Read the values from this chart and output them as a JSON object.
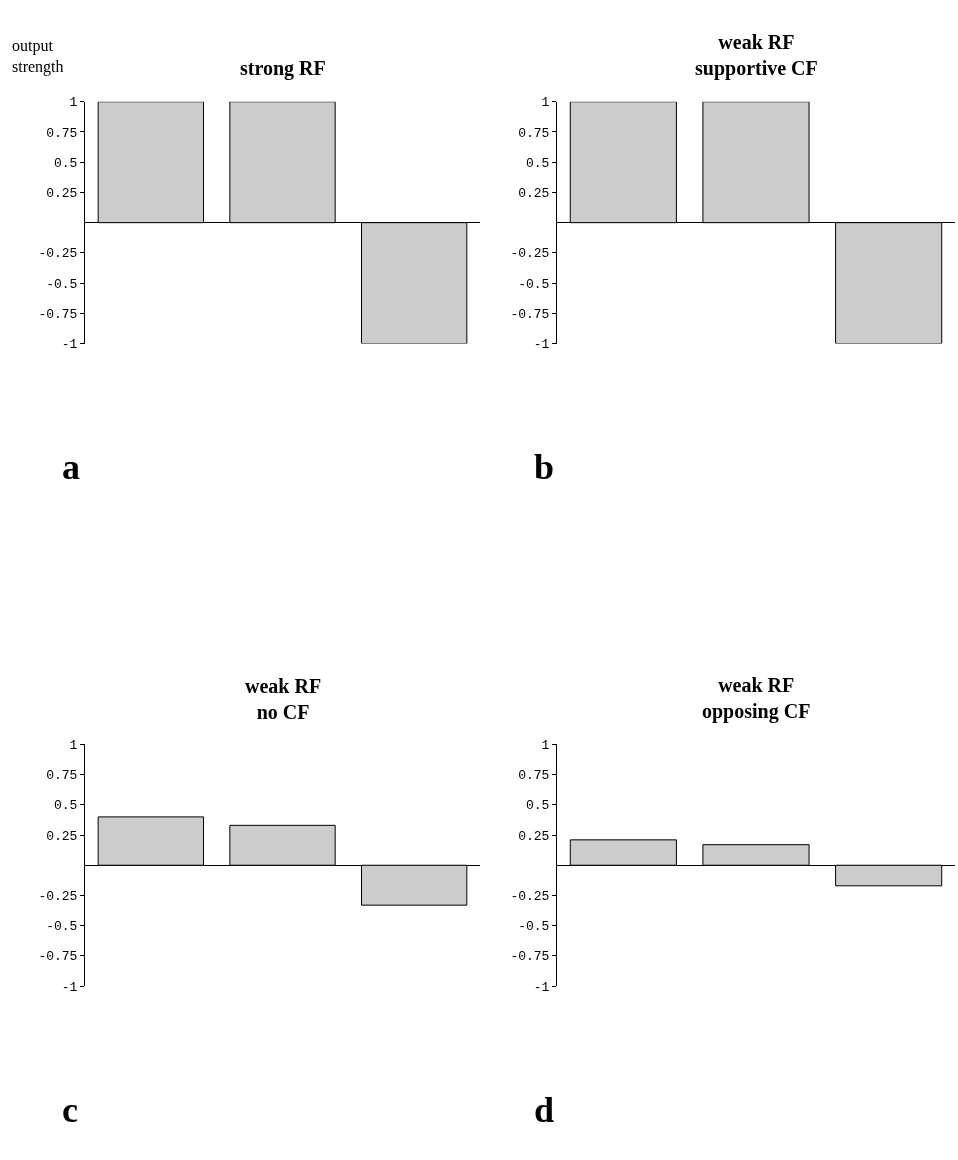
{
  "chart_data": [
    {
      "type": "bar",
      "title": "strong RF",
      "ylabel": "output\nstrength",
      "categories": [
        null,
        null,
        null
      ],
      "values": [
        1,
        1,
        -1
      ],
      "color": "#cccccc",
      "ylim": [
        -1,
        1
      ],
      "yticks": [
        1,
        0.75,
        0.5,
        0.25,
        -0.25,
        -0.5,
        -0.75,
        -1
      ],
      "tick_labels": "y",
      "annotations": [
        "a"
      ]
    },
    {
      "type": "bar",
      "title": "weak RF\nsupportive CF",
      "categories": [
        null,
        null,
        null
      ],
      "values": [
        1,
        1,
        -1
      ],
      "color": "#cccccc",
      "ylim": [
        -1,
        1
      ],
      "yticks": [
        1,
        0.75,
        0.5,
        0.25,
        -0.25,
        -0.5,
        -0.75,
        -1
      ],
      "tick_labels": "y",
      "annotations": [
        "b"
      ]
    },
    {
      "type": "bar",
      "title": "weak RF\nno CF",
      "categories": [
        null,
        null,
        null
      ],
      "values": [
        0.4,
        0.33,
        -0.33
      ],
      "color": "#cccccc",
      "ylim": [
        -1,
        1
      ],
      "yticks": [
        1,
        0.75,
        0.5,
        0.25,
        -0.25,
        -0.5,
        -0.75,
        -1
      ],
      "tick_labels": "y",
      "annotations": [
        "c"
      ]
    },
    {
      "type": "bar",
      "title": "weak RF\nopposing CF",
      "categories": [
        null,
        null,
        null
      ],
      "values": [
        0.21,
        0.17,
        -0.17
      ],
      "color": "#cccccc",
      "ylim": [
        -1,
        1
      ],
      "yticks": [
        1,
        0.75,
        0.5,
        0.25,
        -0.25,
        -0.5,
        -0.75,
        -1
      ],
      "tick_labels": "y",
      "annotations": [
        "d"
      ]
    }
  ]
}
